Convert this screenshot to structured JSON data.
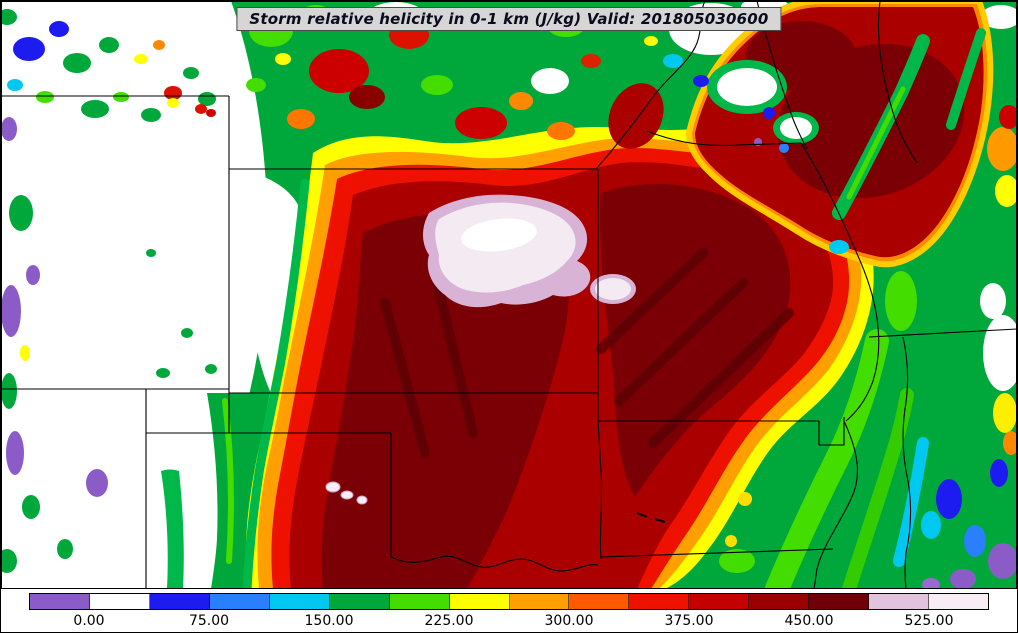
{
  "title": {
    "text": "Storm relative helicity in 0-1 km (J/kg) Valid: 201805030600"
  },
  "map": {
    "field_name": "Storm relative helicity in 0-1 km",
    "units": "J/kg",
    "valid_time": "201805030600"
  },
  "colorbar": {
    "tick_labels": [
      "0.00",
      "75.00",
      "150.00",
      "225.00",
      "300.00",
      "375.00",
      "450.00",
      "525.00"
    ],
    "tick_positions_pct": [
      6.25,
      18.75,
      31.25,
      43.75,
      56.25,
      68.75,
      81.25,
      93.75
    ],
    "segment_colors": [
      "#8b5cc8",
      "#ffffff",
      "#1c1cf0",
      "#2a7fff",
      "#00c8f0",
      "#00a83c",
      "#44dd00",
      "#ffff00",
      "#ffa000",
      "#ff5a00",
      "#ee1100",
      "#c40000",
      "#9a0000",
      "#700008",
      "#e2c3de",
      "#f6eef4"
    ]
  },
  "chart_data": {
    "type": "heatmap",
    "title": "Storm relative helicity in 0-1 km (J/kg) Valid: 201805030600",
    "units": "J/kg",
    "colorbar_ticks": [
      0,
      75,
      150,
      225,
      300,
      375,
      450,
      525
    ],
    "value_range": [
      -37.5,
      562.5
    ],
    "legend_position": "bottom"
  }
}
